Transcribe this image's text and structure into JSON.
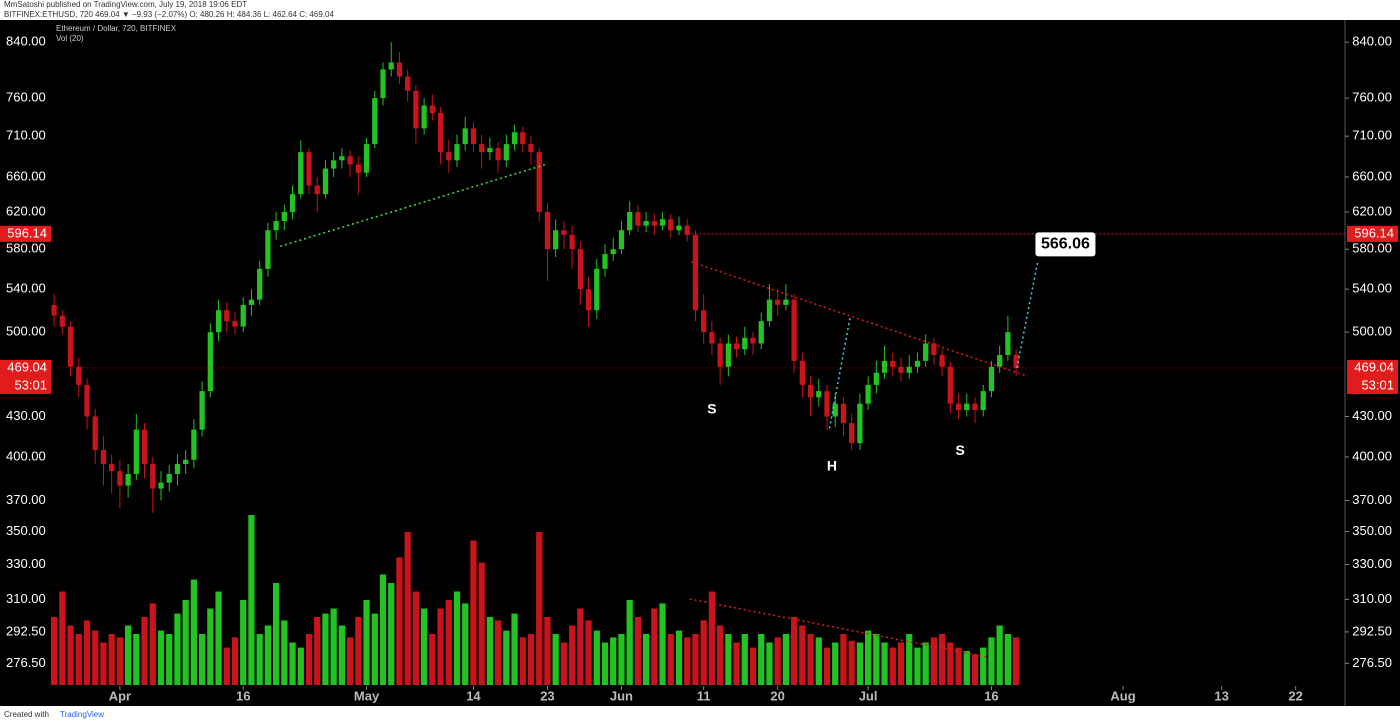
{
  "header": {
    "line1": "MmSatoshi published on TradingView.com, July 19, 2018 19:06 EDT",
    "line2": "BITFINEX:ETHUSD, 720  469.04 ▼ −9.93 (−2.07%) O: 480.26 H: 484.36 L: 462.64 C: 469.04"
  },
  "footer": {
    "text": "Created with",
    "brand": "TradingView"
  },
  "chart_data": {
    "type": "candlestick",
    "title": "Ethereum / Dollar, 720, BITFINEX",
    "volume_label": "Vol (20)",
    "up_color": "#22c322",
    "down_color": "#c8141a",
    "yscale": "log",
    "ylim": [
      266,
      874
    ],
    "yticks": [
      {
        "value": 840,
        "label": "840.00"
      },
      {
        "value": 760,
        "label": "760.00"
      },
      {
        "value": 710,
        "label": "710.00"
      },
      {
        "value": 660,
        "label": "660.00"
      },
      {
        "value": 620,
        "label": "620.00"
      },
      {
        "value": 580,
        "label": "580.00"
      },
      {
        "value": 540,
        "label": "540.00"
      },
      {
        "value": 500,
        "label": "500.00"
      },
      {
        "value": 430,
        "label": "430.00"
      },
      {
        "value": 400,
        "label": "400.00"
      },
      {
        "value": 370,
        "label": "370.00"
      },
      {
        "value": 350,
        "label": "350.00"
      },
      {
        "value": 330,
        "label": "330.00"
      },
      {
        "value": 310,
        "label": "310.00"
      },
      {
        "value": 292.5,
        "label": "292.50"
      },
      {
        "value": 276.5,
        "label": "276.50"
      }
    ],
    "xlim": [
      -0.5,
      157
    ],
    "xticks": [
      {
        "value": 8,
        "label": "Apr"
      },
      {
        "value": 23,
        "label": "16"
      },
      {
        "value": 38,
        "label": "May"
      },
      {
        "value": 51,
        "label": "14"
      },
      {
        "value": 60,
        "label": "23"
      },
      {
        "value": 69,
        "label": "Jun"
      },
      {
        "value": 79,
        "label": "11"
      },
      {
        "value": 88,
        "label": "20"
      },
      {
        "value": 99,
        "label": "Jul"
      },
      {
        "value": 114,
        "label": "16"
      },
      {
        "value": 130,
        "label": "Aug"
      },
      {
        "value": 142,
        "label": "13"
      },
      {
        "value": 151,
        "label": "22"
      }
    ],
    "ohlc": [
      [
        525,
        535,
        505,
        515
      ],
      [
        515,
        520,
        498,
        505
      ],
      [
        505,
        510,
        462,
        470
      ],
      [
        470,
        478,
        445,
        455
      ],
      [
        455,
        460,
        420,
        430
      ],
      [
        430,
        436,
        395,
        405
      ],
      [
        405,
        415,
        380,
        395
      ],
      [
        395,
        402,
        375,
        390
      ],
      [
        390,
        398,
        365,
        380
      ],
      [
        380,
        395,
        372,
        388
      ],
      [
        388,
        432,
        384,
        420
      ],
      [
        420,
        425,
        385,
        395
      ],
      [
        395,
        400,
        362,
        378
      ],
      [
        378,
        390,
        370,
        382
      ],
      [
        382,
        394,
        376,
        388
      ],
      [
        388,
        402,
        380,
        395
      ],
      [
        395,
        405,
        388,
        398
      ],
      [
        398,
        428,
        392,
        420
      ],
      [
        420,
        458,
        415,
        450
      ],
      [
        450,
        508,
        445,
        500
      ],
      [
        500,
        530,
        492,
        520
      ],
      [
        520,
        528,
        500,
        510
      ],
      [
        510,
        518,
        498,
        505
      ],
      [
        505,
        532,
        500,
        525
      ],
      [
        525,
        540,
        515,
        530
      ],
      [
        530,
        568,
        525,
        560
      ],
      [
        560,
        608,
        552,
        600
      ],
      [
        600,
        620,
        590,
        610
      ],
      [
        610,
        628,
        600,
        620
      ],
      [
        620,
        650,
        612,
        640
      ],
      [
        640,
        705,
        635,
        690
      ],
      [
        690,
        695,
        640,
        650
      ],
      [
        650,
        660,
        620,
        640
      ],
      [
        640,
        680,
        635,
        670
      ],
      [
        670,
        690,
        660,
        680
      ],
      [
        680,
        695,
        670,
        685
      ],
      [
        685,
        692,
        660,
        675
      ],
      [
        675,
        685,
        640,
        665
      ],
      [
        665,
        708,
        660,
        700
      ],
      [
        700,
        770,
        695,
        760
      ],
      [
        760,
        810,
        750,
        800
      ],
      [
        800,
        840,
        790,
        810
      ],
      [
        810,
        825,
        780,
        790
      ],
      [
        790,
        800,
        755,
        770
      ],
      [
        770,
        778,
        700,
        720
      ],
      [
        720,
        760,
        712,
        750
      ],
      [
        750,
        765,
        730,
        740
      ],
      [
        740,
        748,
        675,
        690
      ],
      [
        690,
        705,
        665,
        680
      ],
      [
        680,
        712,
        672,
        700
      ],
      [
        700,
        735,
        692,
        720
      ],
      [
        720,
        728,
        690,
        700
      ],
      [
        700,
        712,
        670,
        690
      ],
      [
        690,
        708,
        680,
        695
      ],
      [
        695,
        702,
        665,
        680
      ],
      [
        680,
        712,
        672,
        700
      ],
      [
        700,
        725,
        692,
        715
      ],
      [
        715,
        722,
        690,
        700
      ],
      [
        700,
        710,
        675,
        690
      ],
      [
        690,
        695,
        610,
        620
      ],
      [
        620,
        630,
        548,
        580
      ],
      [
        580,
        612,
        572,
        600
      ],
      [
        600,
        610,
        580,
        595
      ],
      [
        595,
        605,
        560,
        580
      ],
      [
        580,
        588,
        525,
        540
      ],
      [
        540,
        552,
        505,
        520
      ],
      [
        520,
        570,
        512,
        560
      ],
      [
        560,
        585,
        552,
        575
      ],
      [
        575,
        592,
        568,
        580
      ],
      [
        580,
        610,
        575,
        600
      ],
      [
        600,
        632,
        595,
        620
      ],
      [
        620,
        628,
        598,
        605
      ],
      [
        605,
        620,
        598,
        610
      ],
      [
        610,
        618,
        595,
        605
      ],
      [
        605,
        620,
        600,
        612
      ],
      [
        612,
        618,
        592,
        600
      ],
      [
        600,
        615,
        595,
        605
      ],
      [
        605,
        612,
        588,
        595
      ],
      [
        595,
        600,
        510,
        520
      ],
      [
        520,
        535,
        490,
        500
      ],
      [
        500,
        510,
        480,
        490
      ],
      [
        490,
        495,
        455,
        470
      ],
      [
        470,
        498,
        462,
        490
      ],
      [
        490,
        496,
        478,
        485
      ],
      [
        485,
        505,
        480,
        495
      ],
      [
        495,
        500,
        480,
        490
      ],
      [
        490,
        518,
        485,
        510
      ],
      [
        510,
        545,
        505,
        530
      ],
      [
        530,
        540,
        515,
        525
      ],
      [
        525,
        545,
        520,
        530
      ],
      [
        530,
        535,
        465,
        475
      ],
      [
        475,
        482,
        445,
        455
      ],
      [
        455,
        462,
        430,
        445
      ],
      [
        445,
        460,
        438,
        450
      ],
      [
        450,
        455,
        420,
        430
      ],
      [
        430,
        448,
        422,
        440
      ],
      [
        440,
        445,
        415,
        425
      ],
      [
        425,
        432,
        405,
        410
      ],
      [
        410,
        448,
        405,
        440
      ],
      [
        440,
        462,
        435,
        455
      ],
      [
        455,
        475,
        448,
        465
      ],
      [
        465,
        488,
        460,
        475
      ],
      [
        475,
        482,
        462,
        470
      ],
      [
        470,
        478,
        458,
        465
      ],
      [
        465,
        480,
        460,
        470
      ],
      [
        470,
        482,
        465,
        475
      ],
      [
        475,
        498,
        470,
        490
      ],
      [
        490,
        495,
        472,
        480
      ],
      [
        480,
        485,
        462,
        470
      ],
      [
        470,
        474,
        432,
        440
      ],
      [
        440,
        448,
        428,
        435
      ],
      [
        435,
        448,
        430,
        440
      ],
      [
        440,
        445,
        425,
        435
      ],
      [
        435,
        455,
        430,
        450
      ],
      [
        450,
        475,
        445,
        470
      ],
      [
        470,
        488,
        465,
        480
      ],
      [
        480,
        515,
        475,
        500
      ],
      [
        480.26,
        484.36,
        462.64,
        469.04
      ]
    ],
    "volume": [
      40,
      55,
      35,
      30,
      38,
      32,
      25,
      30,
      28,
      35,
      30,
      40,
      48,
      32,
      30,
      42,
      50,
      62,
      30,
      45,
      55,
      22,
      28,
      50,
      100,
      30,
      35,
      60,
      38,
      25,
      22,
      30,
      40,
      42,
      45,
      35,
      28,
      40,
      50,
      42,
      65,
      60,
      75,
      90,
      55,
      45,
      30,
      45,
      50,
      55,
      48,
      85,
      72,
      40,
      38,
      32,
      42,
      28,
      30,
      90,
      40,
      30,
      25,
      35,
      45,
      38,
      32,
      25,
      28,
      30,
      50,
      40,
      30,
      45,
      48,
      30,
      32,
      28,
      30,
      38,
      55,
      35,
      30,
      25,
      30,
      22,
      30,
      25,
      28,
      30,
      40,
      35,
      30,
      28,
      22,
      25,
      30,
      26,
      25,
      32,
      30,
      25,
      22,
      25,
      30,
      22,
      25,
      28,
      30,
      25,
      22,
      20,
      18,
      22,
      28,
      35,
      30,
      28
    ],
    "volume_ylim": [
      0,
      100
    ],
    "price_line": {
      "value": 596.14,
      "label": "596.14",
      "color": "#e01c1c",
      "start": 77.5
    },
    "last_price": {
      "value": 469.04,
      "label": "469.04",
      "countdown": "53:01",
      "color": "#e01c1c"
    },
    "drawings": [
      {
        "color": "#39e639",
        "points": [
          [
            27.5,
            583
          ],
          [
            59.8,
            675
          ]
        ]
      },
      {
        "color": "#e01c1c",
        "points": [
          [
            77.5,
            567
          ],
          [
            118.4,
            462
          ]
        ]
      },
      {
        "color": "#3cd6e6",
        "points": [
          [
            94.3,
            421
          ],
          [
            96.8,
            513
          ]
        ]
      },
      {
        "color": "#3cd6e6",
        "points": [
          [
            117.1,
            469.04
          ],
          [
            119.6,
            566.06
          ]
        ]
      }
    ],
    "volume_drawings": [
      {
        "color": "#e01c1c",
        "points": [
          [
            77.3,
            50.6
          ],
          [
            113.5,
            16.5
          ]
        ]
      }
    ],
    "annotations": [
      {
        "text": "S",
        "at": [
          80,
          435
        ]
      },
      {
        "text": "H",
        "at": [
          94.6,
          393
        ]
      },
      {
        "text": "S",
        "at": [
          110.2,
          404
        ]
      }
    ],
    "callout": {
      "text": "566.06",
      "at": [
        123,
        585
      ]
    }
  }
}
